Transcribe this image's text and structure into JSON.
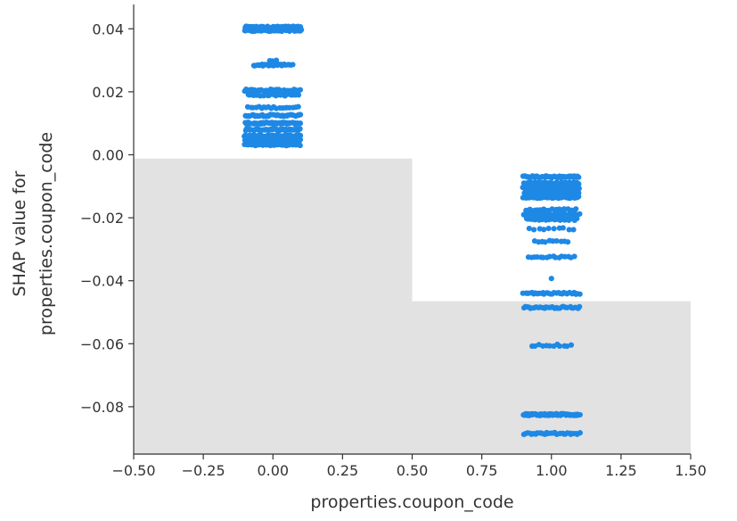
{
  "chart_data": {
    "type": "scatter",
    "title": "",
    "xlabel": "properties.coupon_code",
    "ylabel_lines": [
      "SHAP value for",
      "properties.coupon_code"
    ],
    "xlim": [
      -0.5,
      1.5
    ],
    "ylim": [
      -0.095,
      0.048
    ],
    "xticks": [
      -0.5,
      -0.25,
      0.0,
      0.25,
      0.5,
      0.75,
      1.0,
      1.25,
      1.5
    ],
    "xtick_labels": [
      "−0.50",
      "−0.25",
      "0.00",
      "0.25",
      "0.50",
      "0.75",
      "1.00",
      "1.25",
      "1.50"
    ],
    "yticks": [
      0.04,
      0.02,
      0.0,
      -0.02,
      -0.04,
      -0.06,
      -0.08
    ],
    "ytick_labels": [
      "0.04",
      "0.02",
      "0.00",
      "−0.02",
      "−0.04",
      "−0.06",
      "−0.08"
    ],
    "grid": false,
    "point_color": "#1e88e5",
    "histogram": {
      "color": "#e2e2e2",
      "bins": [
        {
          "x0": -0.5,
          "x1": 0.5,
          "top": -0.0012
        },
        {
          "x0": 0.5,
          "x1": 1.5,
          "top": -0.0465
        }
      ]
    },
    "clusters": [
      {
        "x_center": 0.0,
        "jitter_width": 0.1,
        "levels": [
          {
            "y": 0.0405,
            "spread": 1.0,
            "n": 70
          },
          {
            "y": 0.0395,
            "spread": 1.0,
            "n": 60
          },
          {
            "y": 0.0285,
            "spread": 0.7,
            "n": 24
          },
          {
            "y": 0.03,
            "spread": 0.1,
            "n": 3
          },
          {
            "y": 0.0205,
            "spread": 1.0,
            "n": 34
          },
          {
            "y": 0.019,
            "spread": 0.9,
            "n": 24
          },
          {
            "y": 0.015,
            "spread": 0.9,
            "n": 20
          },
          {
            "y": 0.0125,
            "spread": 1.0,
            "n": 40
          },
          {
            "y": 0.01,
            "spread": 1.0,
            "n": 46
          },
          {
            "y": 0.008,
            "spread": 1.0,
            "n": 50
          },
          {
            "y": 0.006,
            "spread": 1.0,
            "n": 55
          },
          {
            "y": 0.0045,
            "spread": 1.0,
            "n": 50
          },
          {
            "y": 0.0032,
            "spread": 1.0,
            "n": 45
          }
        ]
      },
      {
        "x_center": 1.0,
        "jitter_width": 0.1,
        "levels": [
          {
            "y": -0.007,
            "spread": 1.0,
            "n": 45
          },
          {
            "y": -0.009,
            "spread": 1.0,
            "n": 55
          },
          {
            "y": -0.0105,
            "spread": 1.0,
            "n": 60
          },
          {
            "y": -0.012,
            "spread": 1.0,
            "n": 55
          },
          {
            "y": -0.0135,
            "spread": 1.0,
            "n": 40
          },
          {
            "y": -0.0175,
            "spread": 0.9,
            "n": 24
          },
          {
            "y": -0.019,
            "spread": 1.0,
            "n": 40
          },
          {
            "y": -0.0205,
            "spread": 0.9,
            "n": 26
          },
          {
            "y": -0.0235,
            "spread": 0.8,
            "n": 10
          },
          {
            "y": -0.0275,
            "spread": 0.6,
            "n": 10
          },
          {
            "y": -0.0325,
            "spread": 0.8,
            "n": 16
          },
          {
            "y": -0.039,
            "spread": 0.1,
            "n": 1
          },
          {
            "y": -0.044,
            "spread": 1.0,
            "n": 30
          },
          {
            "y": -0.0485,
            "spread": 1.0,
            "n": 30
          },
          {
            "y": -0.0605,
            "spread": 0.7,
            "n": 12
          },
          {
            "y": -0.0825,
            "spread": 1.0,
            "n": 70
          },
          {
            "y": -0.0885,
            "spread": 1.0,
            "n": 30
          }
        ]
      }
    ]
  }
}
